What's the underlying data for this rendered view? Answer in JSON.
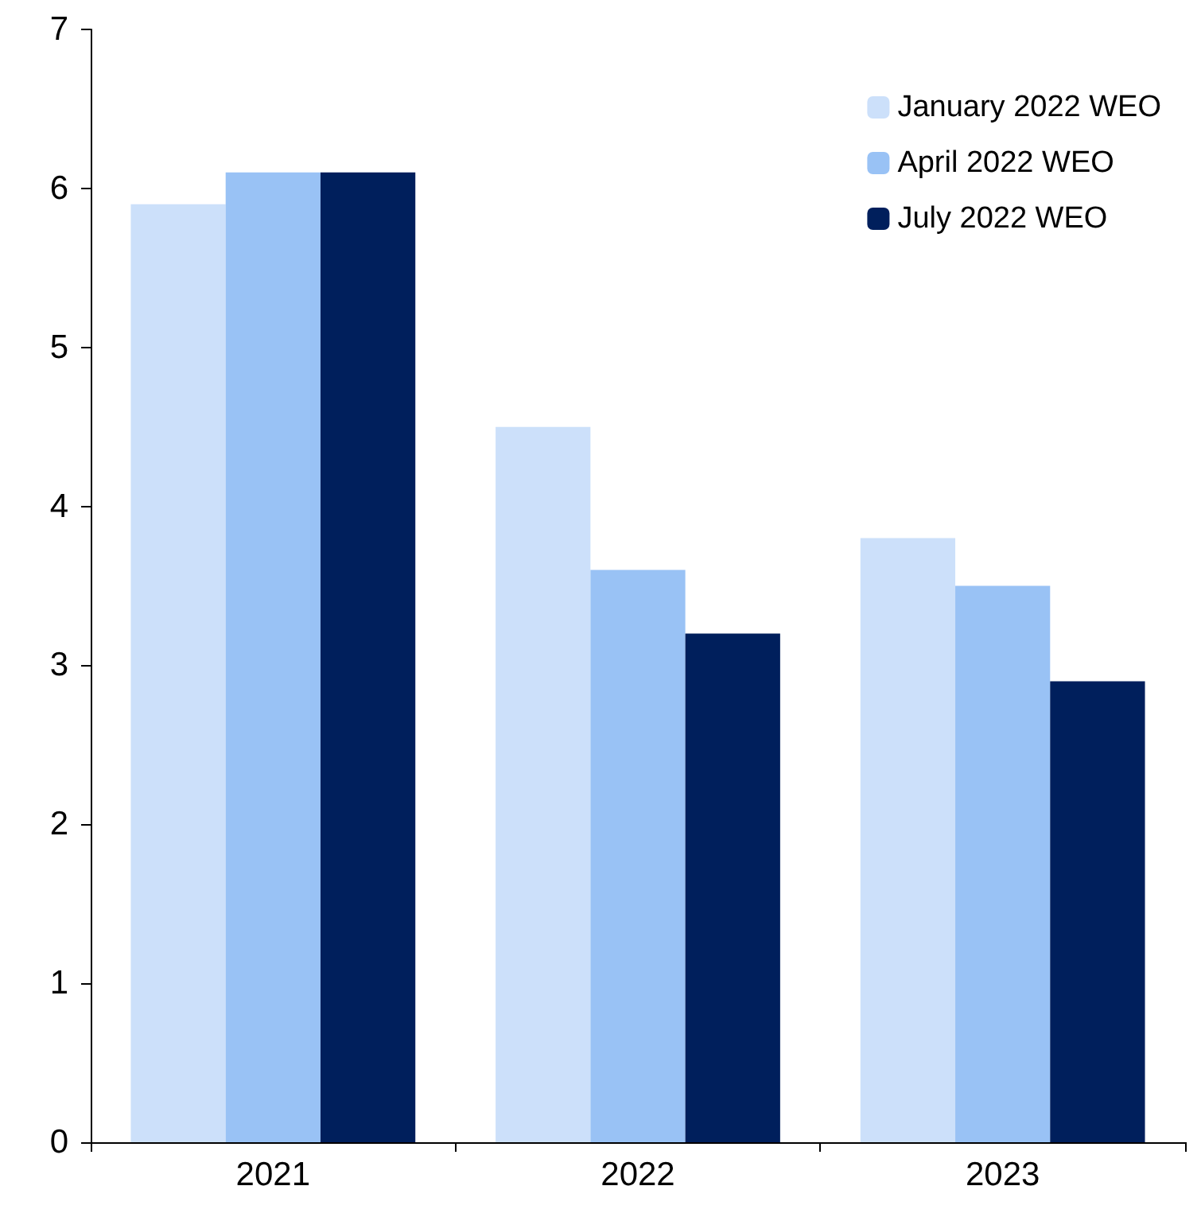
{
  "chart_data": {
    "type": "bar",
    "categories": [
      "2021",
      "2022",
      "2023"
    ],
    "series": [
      {
        "name": "January 2022 WEO",
        "color": "#cce0fa",
        "values": [
          5.9,
          4.5,
          3.8
        ]
      },
      {
        "name": "April 2022 WEO",
        "color": "#99c2f5",
        "values": [
          6.1,
          3.6,
          3.5
        ]
      },
      {
        "name": "July 2022 WEO",
        "color": "#001f5c",
        "values": [
          6.1,
          3.2,
          2.9
        ]
      }
    ],
    "ylim": [
      0,
      7
    ],
    "yticks": [
      0,
      1,
      2,
      3,
      4,
      5,
      6,
      7
    ],
    "grid": false,
    "legend": "top right"
  }
}
